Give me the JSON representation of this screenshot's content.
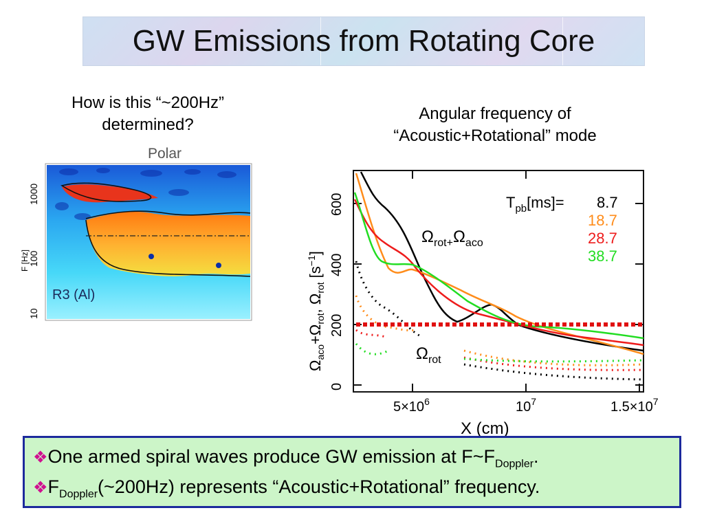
{
  "slide": {
    "title": "GW Emissions from Rotating Core",
    "question_left": [
      "How is this “~200Hz”",
      "determined?"
    ],
    "question_right": [
      "Angular frequency of",
      "“Acoustic+Rotational” mode"
    ],
    "xlabel": "X (cm)"
  },
  "left_plot": {
    "panel_title": "Polar",
    "ylabel": "F [Hz]",
    "yticks": [
      "1000",
      "100",
      "10"
    ],
    "model_label": "R3 (Al)"
  },
  "right_plot": {
    "ylabel_main": "Ω",
    "ylabel_sub1": "aco",
    "ylabel_plus": "+Ω",
    "ylabel_sub2": "rot",
    "ylabel_comma": ", Ω",
    "ylabel_sub3": "rot",
    "ylabel_unit": "[s",
    "ylabel_exp": "−1",
    "ylabel_close": "]",
    "yticks": [
      "0",
      "200",
      "400",
      "600"
    ],
    "xticks": [
      "5×10",
      "10",
      "1.5×10"
    ],
    "xtick_exps": [
      "6",
      "7",
      "7"
    ],
    "legend_title": "T",
    "legend_title_sub": "pb",
    "legend_title_rest": "[ms]=",
    "legend": [
      {
        "label": "8.7",
        "color": "#000000"
      },
      {
        "label": "18.7",
        "color": "#ff8c1a"
      },
      {
        "label": "28.7",
        "color": "#ee1c1c"
      },
      {
        "label": "38.7",
        "color": "#22dd22"
      }
    ],
    "annot_top": "Ω",
    "annot_top_sub": "rot+",
    "annot_top_2": "Ω",
    "annot_top_sub2": "aco",
    "annot_bottom": "Ω",
    "annot_bottom_sub": "rot",
    "ref_line_color": "#e01010"
  },
  "notes": {
    "mark": "❖",
    "line1_a": "One armed spiral waves produce GW emission at F~F",
    "line1_sub": "Doppler",
    "line1_b": ".",
    "line2_a": "F",
    "line2_sub": "Doppler",
    "line2_b": "(~200Hz) represents “Acoustic+Rotational” frequency."
  }
}
